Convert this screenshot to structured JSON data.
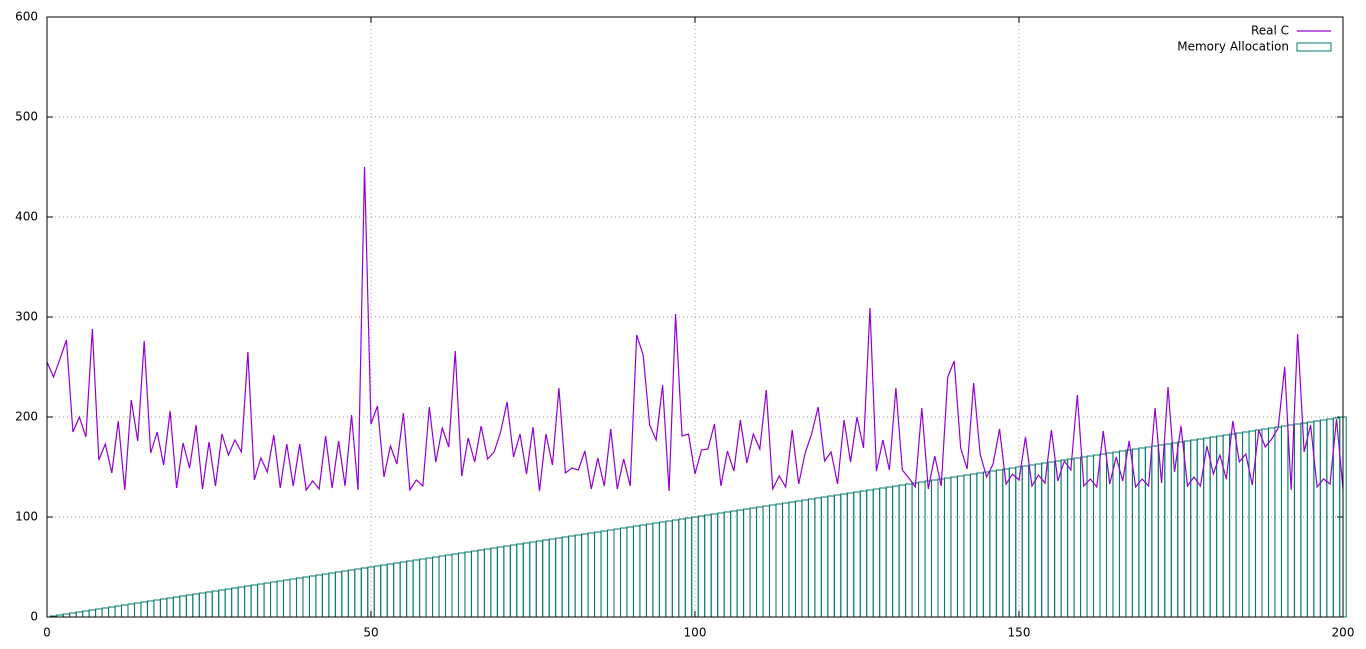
{
  "chart_data": {
    "type": "line",
    "x": [
      0,
      1,
      2,
      3,
      4,
      5,
      6,
      7,
      8,
      9,
      10,
      11,
      12,
      13,
      14,
      15,
      16,
      17,
      18,
      19,
      20,
      21,
      22,
      23,
      24,
      25,
      26,
      27,
      28,
      29,
      30,
      31,
      32,
      33,
      34,
      35,
      36,
      37,
      38,
      39,
      40,
      41,
      42,
      43,
      44,
      45,
      46,
      47,
      48,
      49,
      50,
      51,
      52,
      53,
      54,
      55,
      56,
      57,
      58,
      59,
      60,
      61,
      62,
      63,
      64,
      65,
      66,
      67,
      68,
      69,
      70,
      71,
      72,
      73,
      74,
      75,
      76,
      77,
      78,
      79,
      80,
      81,
      82,
      83,
      84,
      85,
      86,
      87,
      88,
      89,
      90,
      91,
      92,
      93,
      94,
      95,
      96,
      97,
      98,
      99,
      100,
      101,
      102,
      103,
      104,
      105,
      106,
      107,
      108,
      109,
      110,
      111,
      112,
      113,
      114,
      115,
      116,
      117,
      118,
      119,
      120,
      121,
      122,
      123,
      124,
      125,
      126,
      127,
      128,
      129,
      130,
      131,
      132,
      133,
      134,
      135,
      136,
      137,
      138,
      139,
      140,
      141,
      142,
      143,
      144,
      145,
      146,
      147,
      148,
      149,
      150,
      151,
      152,
      153,
      154,
      155,
      156,
      157,
      158,
      159,
      160,
      161,
      162,
      163,
      164,
      165,
      166,
      167,
      168,
      169,
      170,
      171,
      172,
      173,
      174,
      175,
      176,
      177,
      178,
      179,
      180,
      181,
      182,
      183,
      184,
      185,
      186,
      187,
      188,
      189,
      190,
      191,
      192,
      193,
      194,
      195,
      196,
      197,
      198,
      199,
      200
    ],
    "series": [
      {
        "name": "Real C",
        "color": "#9400d3",
        "style": "line",
        "values": [
          255,
          240,
          258,
          277,
          185,
          200,
          180,
          288,
          157,
          173,
          144,
          196,
          127,
          217,
          176,
          276,
          164,
          185,
          152,
          206,
          129,
          174,
          149,
          192,
          128,
          175,
          131,
          183,
          162,
          177,
          165,
          265,
          137,
          159,
          145,
          182,
          129,
          173,
          131,
          173,
          127,
          136,
          128,
          181,
          129,
          176,
          131,
          202,
          127,
          450,
          193,
          211,
          140,
          171,
          153,
          204,
          127,
          137,
          131,
          210,
          155,
          189,
          170,
          266,
          141,
          179,
          155,
          191,
          158,
          165,
          185,
          215,
          160,
          183,
          143,
          190,
          126,
          183,
          152,
          229,
          144,
          149,
          147,
          166,
          128,
          159,
          131,
          188,
          128,
          158,
          131,
          282,
          262,
          192,
          177,
          232,
          126,
          303,
          181,
          183,
          143,
          167,
          168,
          193,
          131,
          166,
          146,
          197,
          154,
          183,
          168,
          227,
          128,
          141,
          130,
          187,
          133,
          164,
          183,
          210,
          156,
          165,
          133,
          197,
          155,
          200,
          169,
          309,
          146,
          177,
          147,
          229,
          147,
          139,
          130,
          209,
          128,
          161,
          131,
          240,
          256,
          169,
          148,
          234,
          163,
          140,
          153,
          188,
          133,
          143,
          137,
          180,
          131,
          142,
          134,
          187,
          136,
          156,
          147,
          222,
          131,
          138,
          130,
          186,
          133,
          160,
          136,
          176,
          130,
          138,
          131,
          209,
          134,
          230,
          145,
          191,
          131,
          140,
          131,
          171,
          143,
          162,
          138,
          196,
          155,
          163,
          132,
          187,
          170,
          178,
          189,
          250,
          127,
          283,
          165,
          192,
          130,
          138,
          133,
          198,
          128
        ]
      },
      {
        "name": "Memory Allocation",
        "color": "#00796b",
        "style": "boxes",
        "values": [
          0,
          1,
          2,
          3,
          4,
          5,
          6,
          7,
          8,
          9,
          10,
          11,
          12,
          13,
          14,
          15,
          16,
          17,
          18,
          19,
          20,
          21,
          22,
          23,
          24,
          25,
          26,
          27,
          28,
          29,
          30,
          31,
          32,
          33,
          34,
          35,
          36,
          37,
          38,
          39,
          40,
          41,
          42,
          43,
          44,
          45,
          46,
          47,
          48,
          49,
          50,
          51,
          52,
          53,
          54,
          55,
          56,
          57,
          58,
          59,
          60,
          61,
          62,
          63,
          64,
          65,
          66,
          67,
          68,
          69,
          70,
          71,
          72,
          73,
          74,
          75,
          76,
          77,
          78,
          79,
          80,
          81,
          82,
          83,
          84,
          85,
          86,
          87,
          88,
          89,
          90,
          91,
          92,
          93,
          94,
          95,
          96,
          97,
          98,
          99,
          100,
          101,
          102,
          103,
          104,
          105,
          106,
          107,
          108,
          109,
          110,
          111,
          112,
          113,
          114,
          115,
          116,
          117,
          118,
          119,
          120,
          121,
          122,
          123,
          124,
          125,
          126,
          127,
          128,
          129,
          130,
          131,
          132,
          133,
          134,
          135,
          136,
          137,
          138,
          139,
          140,
          141,
          142,
          143,
          144,
          145,
          146,
          147,
          148,
          149,
          150,
          151,
          152,
          153,
          154,
          155,
          156,
          157,
          158,
          159,
          160,
          161,
          162,
          163,
          164,
          165,
          166,
          167,
          168,
          169,
          170,
          171,
          172,
          173,
          174,
          175,
          176,
          177,
          178,
          179,
          180,
          181,
          182,
          183,
          184,
          185,
          186,
          187,
          188,
          189,
          190,
          191,
          192,
          193,
          194,
          195,
          196,
          197,
          198,
          199,
          200
        ]
      }
    ],
    "xlim": [
      0,
      200
    ],
    "xticks": [
      0,
      50,
      100,
      150,
      200
    ],
    "ylim": [
      0,
      600
    ],
    "yticks": [
      0,
      100,
      200,
      300,
      400,
      500,
      600
    ],
    "grid": true,
    "legend": "top-right"
  }
}
